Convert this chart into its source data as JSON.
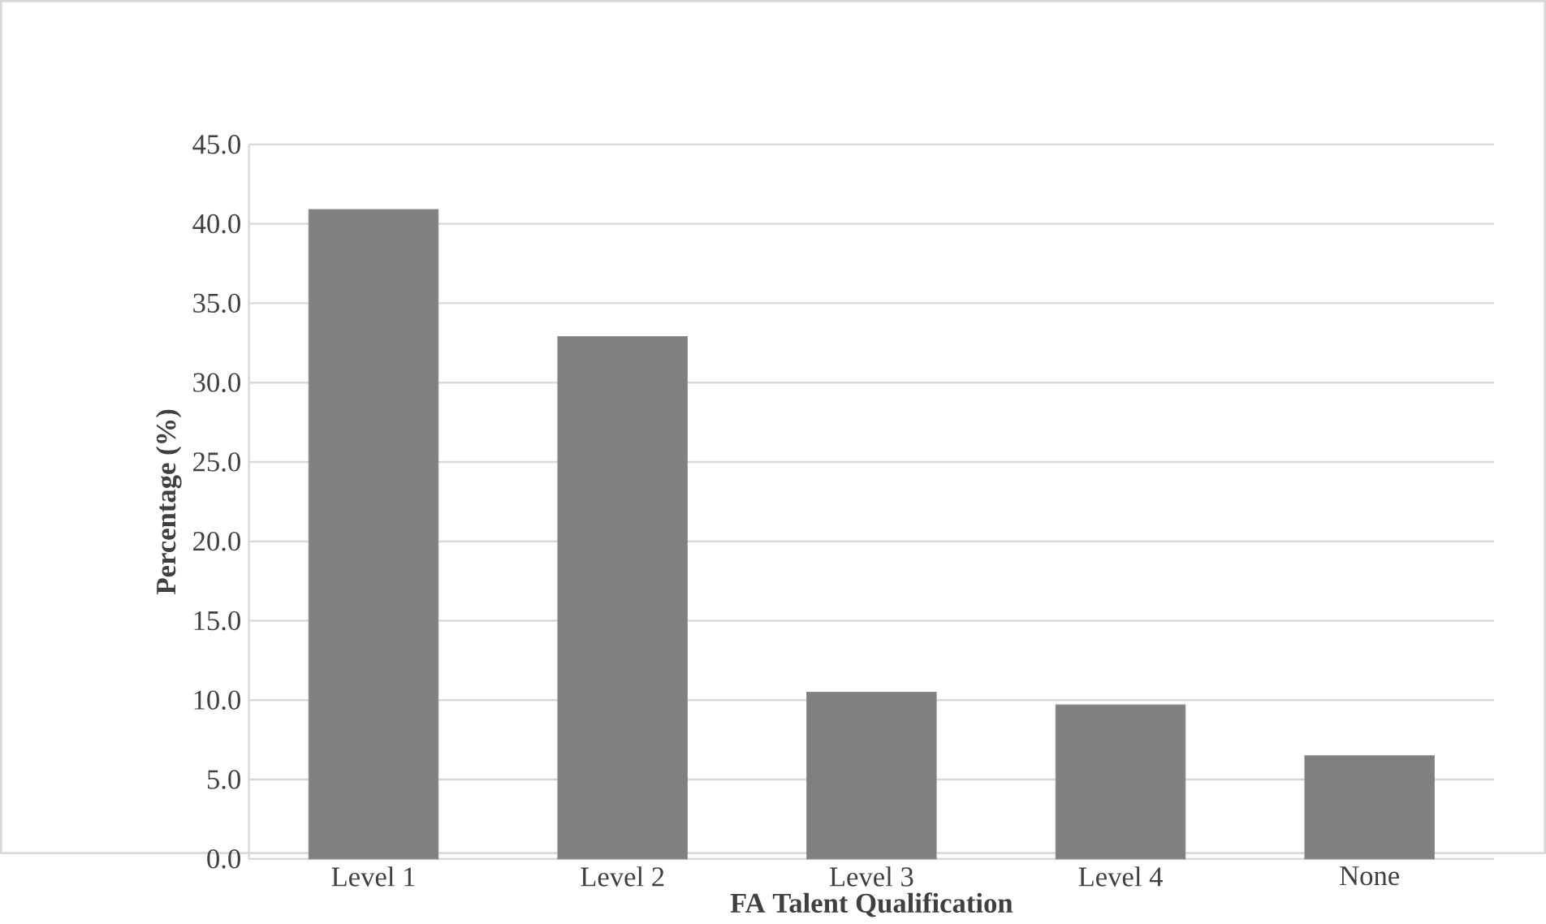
{
  "chart_data": {
    "type": "bar",
    "xlabel": "FA Talent Qualification",
    "ylabel": "Percentage (%)",
    "categories": [
      "Level 1",
      "Level 2",
      "Level 3",
      "Level 4",
      "None"
    ],
    "values": [
      40.9,
      32.9,
      10.5,
      9.7,
      6.5
    ],
    "color": "#808080",
    "ylim": [
      0,
      45
    ],
    "yticks": [
      {
        "value": 0,
        "label": "0.0"
      },
      {
        "value": 5,
        "label": "5.0"
      },
      {
        "value": 10,
        "label": "10.0"
      },
      {
        "value": 15,
        "label": "15.0"
      },
      {
        "value": 20,
        "label": "20.0"
      },
      {
        "value": 25,
        "label": "25.0"
      },
      {
        "value": 30,
        "label": "30.0"
      },
      {
        "value": 35,
        "label": "35.0"
      },
      {
        "value": 40,
        "label": "40.0"
      },
      {
        "value": 45,
        "label": "45.0"
      }
    ],
    "grid": "y"
  }
}
